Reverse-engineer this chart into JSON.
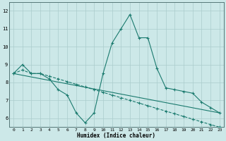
{
  "xlabel": "Humidex (Indice chaleur)",
  "bg_color": "#cce8e8",
  "grid_color": "#aacccc",
  "line_color": "#1a7a6e",
  "xlim_min": -0.5,
  "xlim_max": 23.5,
  "ylim_min": 5.5,
  "ylim_max": 12.5,
  "series1_x": [
    0,
    1,
    2,
    3,
    4,
    5,
    6,
    7,
    8,
    9,
    10,
    11,
    12,
    13,
    14,
    15,
    16,
    17,
    18,
    19,
    20,
    21,
    22,
    23
  ],
  "series1_y": [
    8.5,
    9.0,
    8.5,
    8.5,
    8.2,
    7.6,
    7.3,
    6.3,
    5.75,
    6.3,
    8.5,
    10.2,
    11.0,
    11.8,
    10.5,
    10.5,
    8.8,
    7.7,
    7.6,
    7.5,
    7.4,
    6.9,
    6.6,
    6.3
  ],
  "series2_x": [
    0,
    1,
    2,
    3,
    4,
    5,
    6,
    7,
    8,
    9,
    10,
    11,
    12,
    13,
    14,
    15,
    16,
    17,
    18,
    19,
    20,
    21,
    22,
    23
  ],
  "series2_y": [
    8.5,
    8.7,
    8.5,
    8.5,
    8.35,
    8.2,
    8.05,
    7.9,
    7.75,
    7.6,
    7.45,
    7.3,
    7.15,
    7.0,
    6.85,
    6.7,
    6.55,
    6.4,
    6.25,
    6.1,
    5.95,
    5.8,
    5.65,
    5.5
  ],
  "series3_x": [
    0,
    23
  ],
  "series3_y": [
    8.5,
    6.3
  ],
  "yticks": [
    6,
    7,
    8,
    9,
    10,
    11,
    12
  ],
  "xticks": [
    0,
    1,
    2,
    3,
    4,
    5,
    6,
    7,
    8,
    9,
    10,
    11,
    12,
    13,
    14,
    15,
    16,
    17,
    18,
    19,
    20,
    21,
    22,
    23
  ],
  "xlabel_fontsize": 5.5,
  "tick_fontsize": 4.5
}
